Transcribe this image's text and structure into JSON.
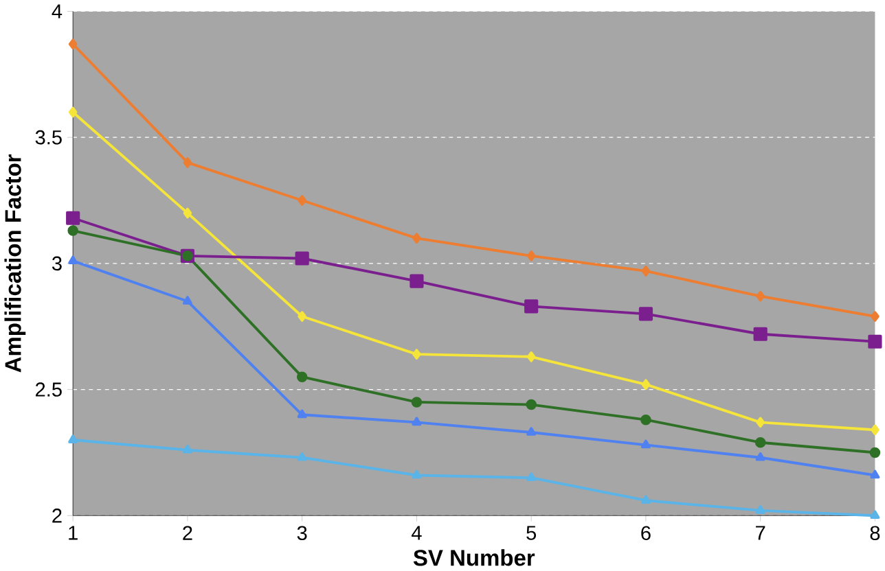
{
  "chart_data": {
    "type": "line",
    "xlabel": "SV Number",
    "ylabel": "Amplification Factor",
    "x": [
      1,
      2,
      3,
      4,
      5,
      6,
      7,
      8
    ],
    "xlim": [
      1,
      8
    ],
    "xticks": [
      1,
      2,
      3,
      4,
      5,
      6,
      7,
      8
    ],
    "ylim": [
      2,
      4
    ],
    "yticks": [
      2,
      2.5,
      3,
      3.5,
      4
    ],
    "grid": "y",
    "series": [
      {
        "color": "#ed7d31",
        "marker": "diamond",
        "values": [
          3.87,
          3.4,
          3.25,
          3.1,
          3.03,
          2.97,
          2.87,
          2.79
        ]
      },
      {
        "color": "#f5e53a",
        "marker": "diamond",
        "values": [
          3.6,
          3.2,
          2.79,
          2.64,
          2.63,
          2.52,
          2.37,
          2.34
        ]
      },
      {
        "color": "#7b1f8f",
        "marker": "square",
        "values": [
          3.18,
          3.03,
          3.02,
          2.93,
          2.83,
          2.8,
          2.72,
          2.69
        ]
      },
      {
        "color": "#2e7025",
        "marker": "circle",
        "values": [
          3.13,
          3.03,
          2.55,
          2.45,
          2.44,
          2.38,
          2.29,
          2.25
        ]
      },
      {
        "color": "#4f81f0",
        "marker": "triangle",
        "values": [
          3.01,
          2.85,
          2.4,
          2.37,
          2.33,
          2.28,
          2.23,
          2.16
        ]
      },
      {
        "color": "#5ab4e8",
        "marker": "triangle",
        "values": [
          2.3,
          2.26,
          2.23,
          2.16,
          2.15,
          2.06,
          2.02,
          2.0
        ]
      }
    ]
  }
}
